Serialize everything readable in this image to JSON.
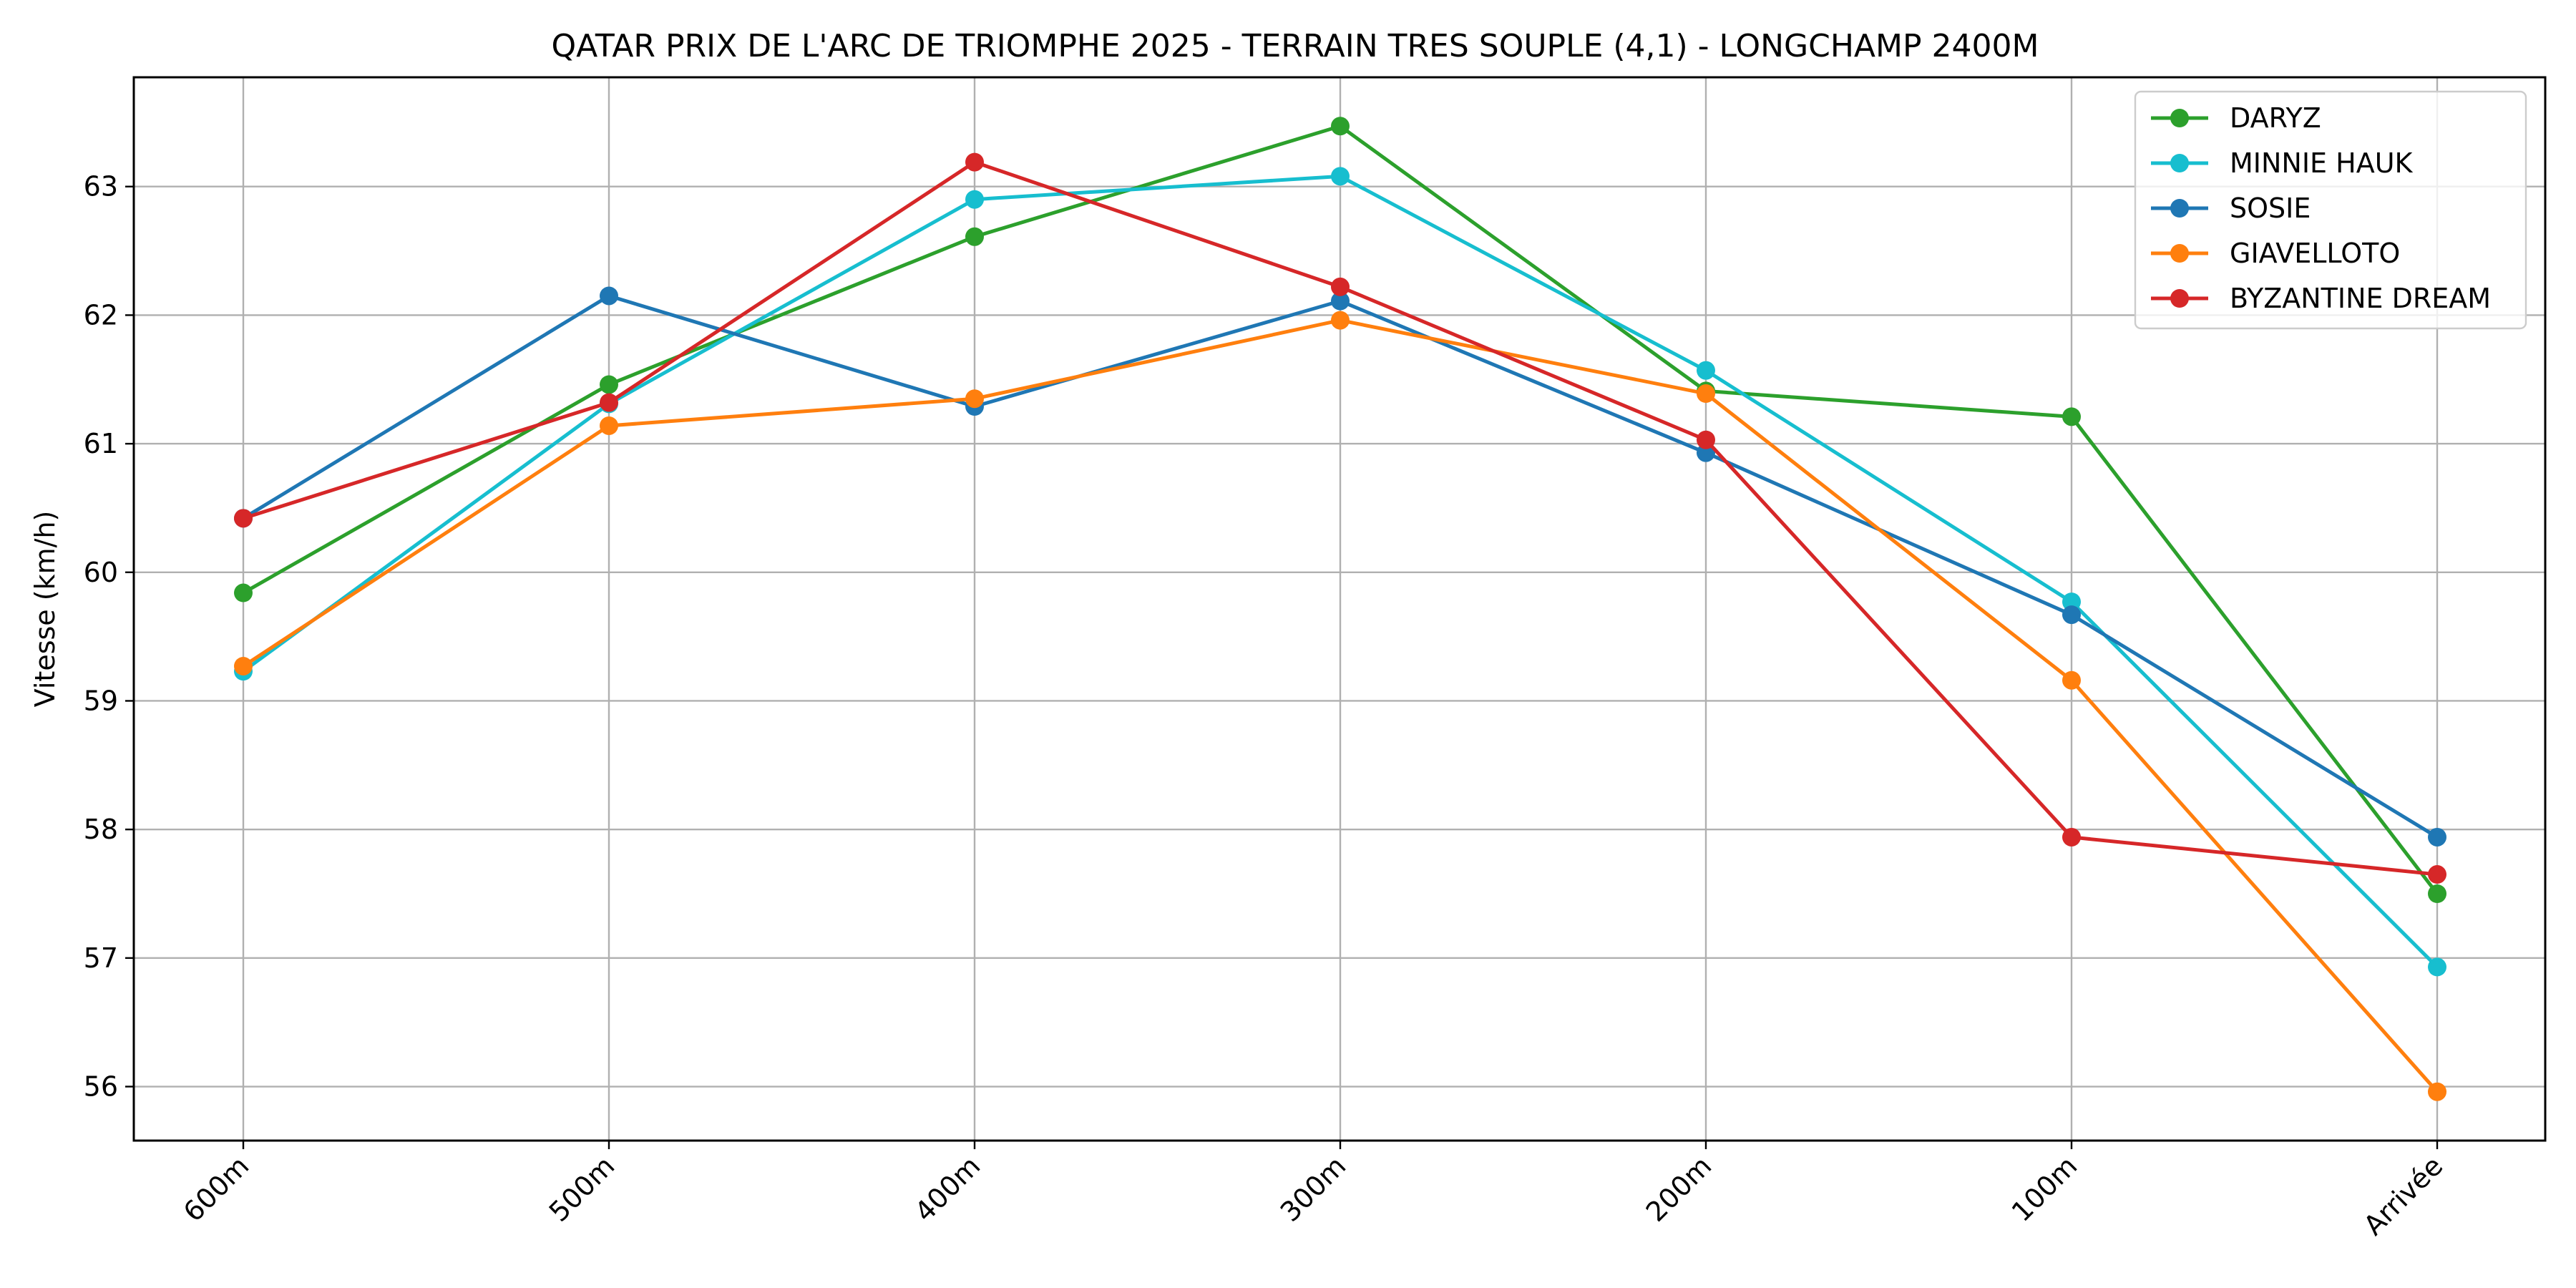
{
  "chart_data": {
    "type": "line",
    "title": "QATAR PRIX DE L'ARC DE TRIOMPHE 2025 - TERRAIN TRES SOUPLE (4,1) - LONGCHAMP 2400M",
    "xlabel": "",
    "ylabel": "Vitesse (km/h)",
    "categories": [
      "600m",
      "500m",
      "400m",
      "300m",
      "200m",
      "100m",
      "Arrivée"
    ],
    "ylim": [
      55.58,
      63.85
    ],
    "yticks": [
      56,
      57,
      58,
      59,
      60,
      61,
      62,
      63
    ],
    "grid": true,
    "legend_position": "top-right",
    "series": [
      {
        "name": "DARYZ",
        "color": "#2ca02c",
        "values": [
          59.84,
          61.46,
          62.61,
          63.47,
          61.41,
          61.21,
          57.5
        ]
      },
      {
        "name": "MINNIE HAUK",
        "color": "#17becf",
        "values": [
          59.23,
          61.31,
          62.9,
          63.08,
          61.57,
          59.77,
          56.93
        ]
      },
      {
        "name": "SOSIE",
        "color": "#1f77b4",
        "values": [
          60.42,
          62.15,
          61.29,
          62.11,
          60.93,
          59.67,
          57.94
        ]
      },
      {
        "name": "GIAVELLOTO",
        "color": "#ff7f0e",
        "values": [
          59.27,
          61.14,
          61.35,
          61.96,
          61.39,
          59.16,
          55.96
        ]
      },
      {
        "name": "BYZANTINE DREAM",
        "color": "#d62728",
        "values": [
          60.42,
          61.32,
          63.19,
          62.22,
          61.03,
          57.94,
          57.65
        ]
      }
    ]
  }
}
